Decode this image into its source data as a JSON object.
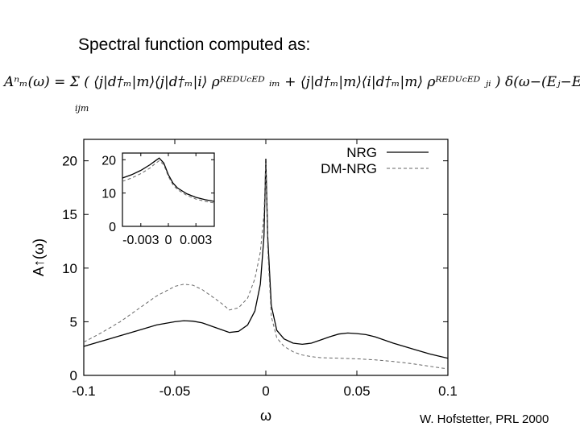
{
  "slide": {
    "title": "Spectral function computed as:",
    "formula": "Aⁿₘ(ω) = Σ ( ⟨j|d†ₘ|m⟩⟨j|d†ₘ|i⟩ ρᴿᴱᴰᵁᶜᴱᴰ ᵢₘ + ⟨j|d†ₘ|m⟩⟨i|d†ₘ|m⟩ ρᴿᴱᴰᵁᶜᴱᴰ ⱼᵢ ) δ(ω−(Eⱼ−Eₘ))",
    "formula_sub": "ijm",
    "citation": "W. Hofstetter, PRL 2000"
  },
  "chart_data": [
    {
      "type": "line",
      "xlabel": "ω",
      "ylabel": "A↑(ω)",
      "xlim": [
        -0.1,
        0.1
      ],
      "ylim": [
        0,
        22
      ],
      "xticks": [
        -0.1,
        -0.05,
        0,
        0.05,
        0.1
      ],
      "xtick_labels": [
        "-0.1",
        "-0.05",
        "0",
        "0.05",
        "0.1"
      ],
      "yticks": [
        0,
        5,
        10,
        15,
        20
      ],
      "ytick_labels": [
        "0",
        "5",
        "10",
        "15",
        "20"
      ],
      "legend_position": "top-right",
      "grid": false,
      "series": [
        {
          "name": "NRG",
          "style": "solid",
          "color": "#000000",
          "x": [
            -0.1,
            -0.09,
            -0.08,
            -0.07,
            -0.06,
            -0.05,
            -0.045,
            -0.04,
            -0.035,
            -0.03,
            -0.025,
            -0.02,
            -0.015,
            -0.01,
            -0.006,
            -0.003,
            -0.001,
            0,
            0.001,
            0.003,
            0.006,
            0.01,
            0.015,
            0.02,
            0.025,
            0.03,
            0.035,
            0.04,
            0.045,
            0.05,
            0.055,
            0.06,
            0.07,
            0.08,
            0.09,
            0.1
          ],
          "y": [
            2.7,
            3.2,
            3.7,
            4.2,
            4.7,
            5.0,
            5.1,
            5.05,
            4.9,
            4.6,
            4.3,
            4.0,
            4.1,
            4.7,
            6.0,
            8.5,
            13,
            20.2,
            13,
            6.5,
            4.2,
            3.4,
            3.0,
            2.9,
            3.0,
            3.3,
            3.6,
            3.85,
            3.95,
            3.9,
            3.8,
            3.6,
            3.0,
            2.5,
            2.0,
            1.6
          ]
        },
        {
          "name": "DM-NRG",
          "style": "dashed",
          "color": "#555555",
          "x": [
            -0.1,
            -0.09,
            -0.08,
            -0.07,
            -0.06,
            -0.05,
            -0.045,
            -0.04,
            -0.035,
            -0.03,
            -0.025,
            -0.02,
            -0.015,
            -0.01,
            -0.006,
            -0.003,
            -0.001,
            0,
            0.001,
            0.003,
            0.006,
            0.01,
            0.015,
            0.02,
            0.025,
            0.03,
            0.04,
            0.05,
            0.06,
            0.07,
            0.08,
            0.09,
            0.1
          ],
          "y": [
            3.1,
            4.0,
            5.0,
            6.2,
            7.4,
            8.3,
            8.5,
            8.4,
            8.0,
            7.4,
            6.8,
            6.1,
            6.3,
            7.2,
            9.0,
            11.5,
            15,
            19.8,
            12,
            5.5,
            3.5,
            2.7,
            2.2,
            1.9,
            1.75,
            1.65,
            1.6,
            1.55,
            1.45,
            1.3,
            1.1,
            0.85,
            0.6
          ]
        }
      ]
    },
    {
      "type": "line",
      "inset": true,
      "xlim": [
        -0.005,
        0.005
      ],
      "ylim": [
        0,
        22
      ],
      "xticks": [
        -0.003,
        0,
        0.003
      ],
      "xtick_labels": [
        "-0.003",
        "0",
        "0.003"
      ],
      "yticks": [
        0,
        10,
        20
      ],
      "ytick_labels": [
        "0",
        "10",
        "20"
      ],
      "series": [
        {
          "name": "NRG",
          "style": "solid",
          "x": [
            -0.005,
            -0.004,
            -0.003,
            -0.002,
            -0.0015,
            -0.001,
            -0.0005,
            0,
            0.0005,
            0.001,
            0.002,
            0.003,
            0.004,
            0.005
          ],
          "y": [
            14.5,
            15.5,
            16.8,
            18.5,
            19.5,
            20.5,
            19.0,
            15.5,
            13.0,
            11.5,
            9.8,
            8.7,
            8.0,
            7.5
          ]
        },
        {
          "name": "DM-NRG",
          "style": "dashed",
          "x": [
            -0.005,
            -0.004,
            -0.003,
            -0.002,
            -0.0015,
            -0.001,
            -0.0005,
            0,
            0.0005,
            0.001,
            0.002,
            0.003,
            0.004,
            0.005
          ],
          "y": [
            13.5,
            14.5,
            15.8,
            17.5,
            18.7,
            19.7,
            18.5,
            15.0,
            12.5,
            11.0,
            9.3,
            8.2,
            7.5,
            7.0
          ]
        }
      ]
    }
  ]
}
